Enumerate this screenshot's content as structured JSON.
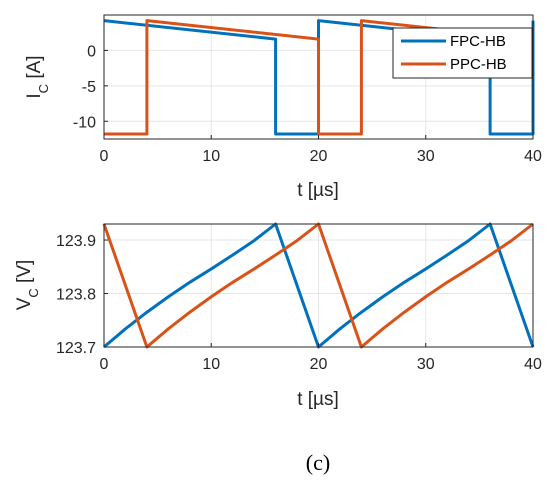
{
  "caption": "(c)",
  "legend": [
    "FPC-HB",
    "PPC-HB"
  ],
  "colors": {
    "FPC-HB": "#0072BD",
    "PPC-HB": "#D95319",
    "grid": "#e6e6e6",
    "axis": "#262626"
  },
  "chart_data": [
    {
      "type": "line",
      "xlabel": "t [µs]",
      "ylabel": "I_C [A]",
      "ylabel_main": "I",
      "ylabel_sub": "C",
      "ylabel_unit": " [A]",
      "xlim": [
        0,
        40
      ],
      "ylim": [
        -12.5,
        5
      ],
      "xticks": [
        0,
        10,
        20,
        30,
        40
      ],
      "yticks": [
        0,
        -5,
        -10
      ],
      "ytick_labels": [
        "0",
        "-5",
        "-10"
      ],
      "grid": true,
      "legend_position": "top-right",
      "series": [
        {
          "name": "FPC-HB",
          "x": [
            0,
            16,
            16,
            20,
            20,
            36,
            36,
            40,
            40
          ],
          "y": [
            4.2,
            1.6,
            -11.8,
            -11.8,
            4.2,
            1.6,
            -11.8,
            -11.8,
            4.2
          ]
        },
        {
          "name": "PPC-HB",
          "x": [
            0,
            4,
            4,
            20,
            20,
            24,
            24,
            40
          ],
          "y": [
            -11.8,
            -11.8,
            4.2,
            1.6,
            -11.8,
            -11.8,
            4.2,
            1.6
          ]
        }
      ]
    },
    {
      "type": "line",
      "xlabel": "t [µs]",
      "ylabel": "V_C [V]",
      "ylabel_main": "V",
      "ylabel_sub": "C",
      "ylabel_unit": " [V]",
      "xlim": [
        0,
        40
      ],
      "ylim": [
        123.7,
        123.93
      ],
      "xticks": [
        0,
        10,
        20,
        30,
        40
      ],
      "yticks": [
        123.7,
        123.8,
        123.9
      ],
      "ytick_labels": [
        "123.7",
        "123.8",
        "123.9"
      ],
      "grid": true,
      "series": [
        {
          "name": "FPC-HB",
          "x": [
            0,
            2,
            4,
            6,
            8,
            10,
            12,
            14,
            16,
            20,
            22,
            24,
            26,
            28,
            30,
            32,
            34,
            36,
            40
          ],
          "y": [
            123.7,
            123.734,
            123.765,
            123.794,
            123.821,
            123.846,
            123.872,
            123.899,
            123.93,
            123.7,
            123.734,
            123.765,
            123.794,
            123.821,
            123.846,
            123.872,
            123.899,
            123.93,
            123.7
          ]
        },
        {
          "name": "PPC-HB",
          "x": [
            0,
            4,
            6,
            8,
            10,
            12,
            14,
            16,
            18,
            20,
            24,
            26,
            28,
            30,
            32,
            34,
            36,
            38,
            40
          ],
          "y": [
            123.93,
            123.7,
            123.734,
            123.765,
            123.794,
            123.821,
            123.846,
            123.872,
            123.899,
            123.93,
            123.7,
            123.734,
            123.765,
            123.794,
            123.821,
            123.846,
            123.872,
            123.899,
            123.93
          ]
        }
      ]
    }
  ]
}
